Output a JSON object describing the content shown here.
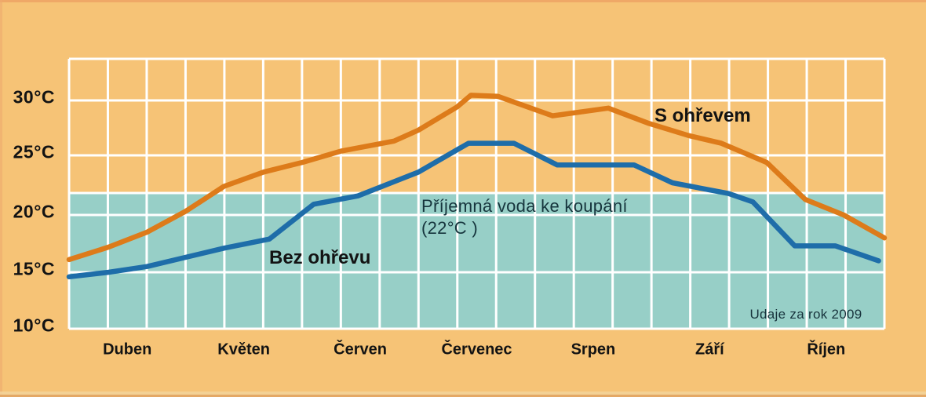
{
  "chart_data": {
    "type": "line",
    "title": "",
    "xlabel": "",
    "ylabel": "",
    "x_axis": {
      "categories": [
        "Duben",
        "Květen",
        "Červen",
        "Červenec",
        "Srpen",
        "Září",
        "Říjen"
      ],
      "columns_per_month": 3
    },
    "y_axis": {
      "tick_labels": [
        "30°C",
        "25°C",
        "20°C",
        "15°C",
        "10°C"
      ],
      "tick_values": [
        30,
        25,
        20,
        15,
        10
      ],
      "unit": "°C",
      "range": [
        10,
        34
      ]
    },
    "grid": {
      "visible": true,
      "color": "#ffffff"
    },
    "legend_position": "inline-annotations",
    "band": {
      "label_line1": "Příjemná voda ke koupání",
      "label_line2": "(22°C )",
      "threshold_c": 22,
      "color": "#97cfc7"
    },
    "series": [
      {
        "name": "S ohřevem",
        "color": "#dd7b1a",
        "points_month_temp": [
          [
            0.0,
            16.1
          ],
          [
            0.34,
            17.2
          ],
          [
            0.67,
            18.5
          ],
          [
            1.0,
            20.3
          ],
          [
            1.33,
            22.4
          ],
          [
            1.67,
            23.6
          ],
          [
            2.0,
            24.4
          ],
          [
            2.34,
            25.4
          ],
          [
            2.79,
            26.3
          ],
          [
            3.0,
            27.3
          ],
          [
            3.33,
            29.4
          ],
          [
            3.45,
            30.5
          ],
          [
            3.68,
            30.4
          ],
          [
            4.15,
            28.6
          ],
          [
            4.63,
            29.3
          ],
          [
            4.98,
            27.9
          ],
          [
            5.32,
            26.8
          ],
          [
            5.6,
            26.1
          ],
          [
            5.99,
            24.4
          ],
          [
            6.32,
            21.3
          ],
          [
            6.65,
            20.0
          ],
          [
            7.0,
            18.0
          ]
        ]
      },
      {
        "name": "Bez ohřevu",
        "color": "#1e6da9",
        "points_month_temp": [
          [
            0.0,
            14.6
          ],
          [
            0.34,
            15.0
          ],
          [
            0.67,
            15.5
          ],
          [
            1.0,
            16.3
          ],
          [
            1.33,
            17.1
          ],
          [
            1.72,
            17.9
          ],
          [
            2.1,
            20.9
          ],
          [
            2.48,
            21.6
          ],
          [
            3.0,
            23.6
          ],
          [
            3.33,
            25.5
          ],
          [
            3.43,
            26.1
          ],
          [
            3.82,
            26.1
          ],
          [
            4.19,
            24.2
          ],
          [
            4.85,
            24.2
          ],
          [
            5.18,
            22.7
          ],
          [
            5.66,
            21.8
          ],
          [
            5.87,
            21.1
          ],
          [
            6.23,
            17.3
          ],
          [
            6.58,
            17.3
          ],
          [
            6.95,
            16.0
          ]
        ]
      }
    ],
    "source_note": "Udaje za rok 2009",
    "background_color": "#f6c376"
  }
}
